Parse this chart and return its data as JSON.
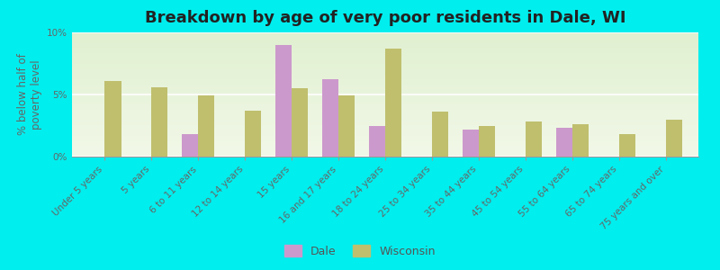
{
  "title": "Breakdown by age of very poor residents in Dale, WI",
  "ylabel": "% below half of\npoverty level",
  "categories": [
    "Under 5 years",
    "5 years",
    "6 to 11 years",
    "12 to 14 years",
    "15 years",
    "16 and 17 years",
    "18 to 24 years",
    "25 to 34 years",
    "35 to 44 years",
    "45 to 54 years",
    "55 to 64 years",
    "65 to 74 years",
    "75 years and over"
  ],
  "dale_values": [
    0,
    0,
    1.8,
    0,
    9.0,
    6.2,
    2.5,
    0,
    2.2,
    0,
    2.3,
    0,
    0
  ],
  "wisconsin_values": [
    6.1,
    5.6,
    4.9,
    3.7,
    5.5,
    4.9,
    8.7,
    3.6,
    2.5,
    2.8,
    2.6,
    1.8,
    3.0
  ],
  "dale_color": "#cc99cc",
  "wisconsin_color": "#bfbf6e",
  "background_color": "#00eeee",
  "plot_bg_top": "#f2f8e8",
  "plot_bg_bottom": "#e0f0d0",
  "ylim": [
    0,
    10
  ],
  "yticks": [
    0,
    5,
    10
  ],
  "ytick_labels": [
    "0%",
    "5%",
    "10%"
  ],
  "bar_width": 0.35,
  "title_fontsize": 13,
  "axis_label_fontsize": 8.5,
  "tick_fontsize": 7.5,
  "legend_labels": [
    "Dale",
    "Wisconsin"
  ],
  "legend_fontsize": 9
}
